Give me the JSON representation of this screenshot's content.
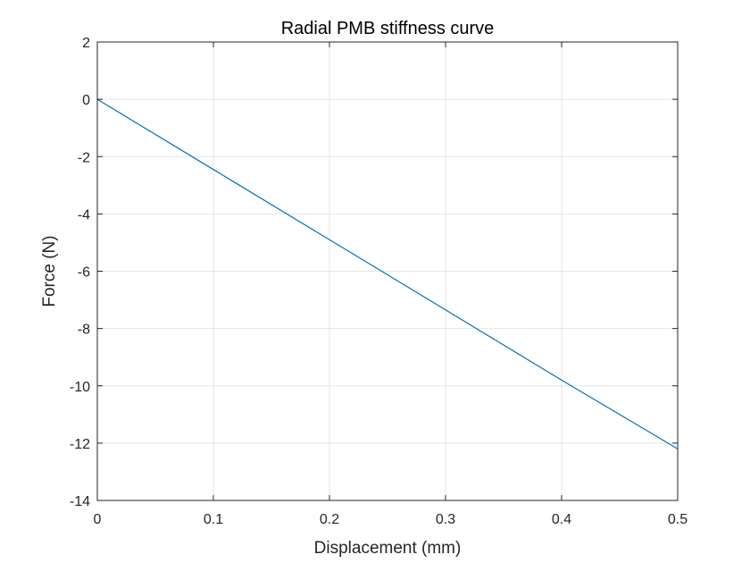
{
  "chart_data": {
    "type": "line",
    "title": "Radial PMB stiffness curve",
    "xlabel": "Displacement (mm)",
    "ylabel": "Force (N)",
    "xlim": [
      0,
      0.5
    ],
    "ylim": [
      -14,
      2
    ],
    "xticks": [
      0,
      0.1,
      0.2,
      0.3,
      0.4,
      0.5
    ],
    "xtick_labels": [
      "0",
      "0.1",
      "0.2",
      "0.3",
      "0.4",
      "0.5"
    ],
    "yticks": [
      -14,
      -12,
      -10,
      -8,
      -6,
      -4,
      -2,
      0,
      2
    ],
    "ytick_labels": [
      "-14",
      "-12",
      "-10",
      "-8",
      "-6",
      "-4",
      "-2",
      "0",
      "2"
    ],
    "grid": true,
    "series": [
      {
        "color": "#0072bd",
        "x": [
          0,
          0.1,
          0.2,
          0.3,
          0.4,
          0.5
        ],
        "y": [
          0,
          -2.45,
          -4.9,
          -7.35,
          -9.8,
          -12.2
        ]
      }
    ]
  }
}
